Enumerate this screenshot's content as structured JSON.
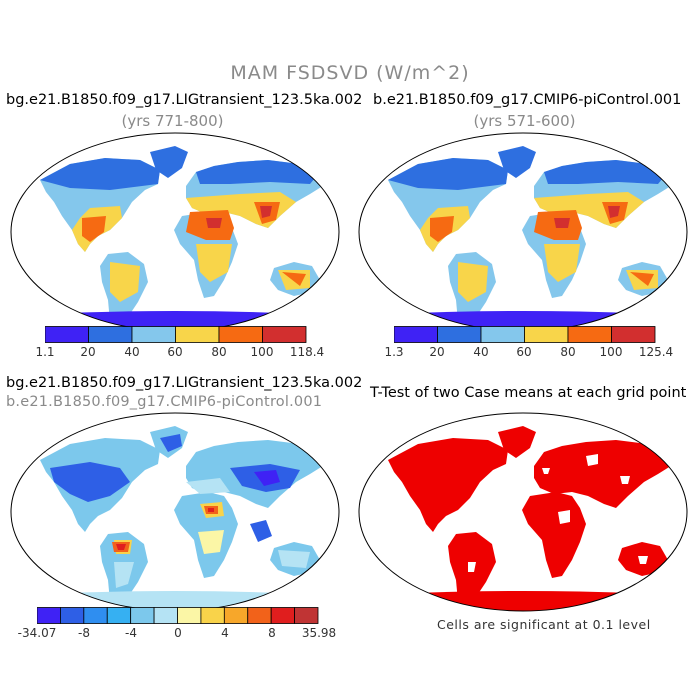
{
  "figure": {
    "title": "MAM FSDSVD (W/m^2)"
  },
  "panels": {
    "top_left": {
      "title": "bg.e21.B1850.f09_g17.LIGtransient_123.5ka.002",
      "years": "(yrs 771-800)",
      "colorbar": {
        "colors": [
          "#3f22f5",
          "#2e6fe0",
          "#84c7ec",
          "#f8d54a",
          "#f66a12",
          "#d22f2f"
        ],
        "labels": [
          "1.1",
          "20",
          "40",
          "60",
          "80",
          "100",
          "118.4"
        ]
      }
    },
    "top_right": {
      "title": "b.e21.B1850.f09_g17.CMIP6-piControl.001",
      "years": "(yrs 571-600)",
      "colorbar": {
        "colors": [
          "#3f22f5",
          "#2e6fe0",
          "#84c7ec",
          "#f8d54a",
          "#f66a12",
          "#d22f2f"
        ],
        "labels": [
          "1.3",
          "20",
          "40",
          "60",
          "80",
          "100",
          "125.4"
        ]
      }
    },
    "bottom_left": {
      "title_line1": "bg.e21.B1850.f09_g17.LIGtransient_123.5ka.002",
      "title_line2": "b.e21.B1850.f09_g17.CMIP6-piControl.001",
      "colorbar": {
        "colors": [
          "#3f22f5",
          "#2e5fe6",
          "#2f8ef0",
          "#36b0f2",
          "#7cc8ec",
          "#b5e3f4",
          "#fbf6a6",
          "#f9d34a",
          "#f7a72a",
          "#f2621a",
          "#e01e1e",
          "#c03434"
        ],
        "labels": [
          "-34.07",
          "-8",
          "-4",
          "0",
          "4",
          "8",
          "35.98"
        ]
      }
    },
    "bottom_right": {
      "title": "T-Test of two Case means at each grid point",
      "significance_color": "#ee0000",
      "note": "Cells are significant at 0.1 level"
    }
  }
}
